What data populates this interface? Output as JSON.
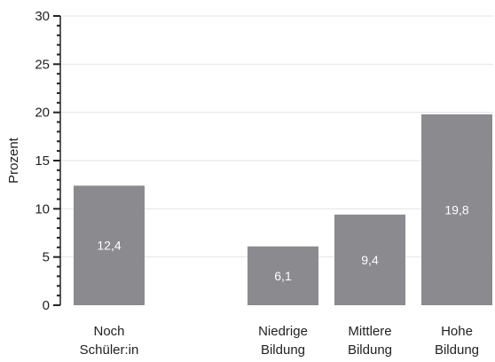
{
  "chart_data": {
    "type": "bar",
    "ylabel": "Prozent",
    "ylim": [
      0,
      30
    ],
    "yticks": [
      "0",
      "5",
      "10",
      "15",
      "20",
      "25",
      "30"
    ],
    "categories": [
      [
        "Noch",
        "Schüler:in"
      ],
      [
        "Niedrige",
        "Bildung"
      ],
      [
        "Mittlere",
        "Bildung"
      ],
      [
        "Hohe",
        "Bildung"
      ]
    ],
    "values": [
      12.4,
      6.1,
      9.4,
      19.8
    ],
    "value_labels": [
      "12,4",
      "6,1",
      "9,4",
      "19,8"
    ],
    "grid": true,
    "colors": {
      "bar": "#8a8a8f",
      "grid": "#e4e4e4",
      "axis": "#222222",
      "bar_label": "#ffffff"
    }
  }
}
